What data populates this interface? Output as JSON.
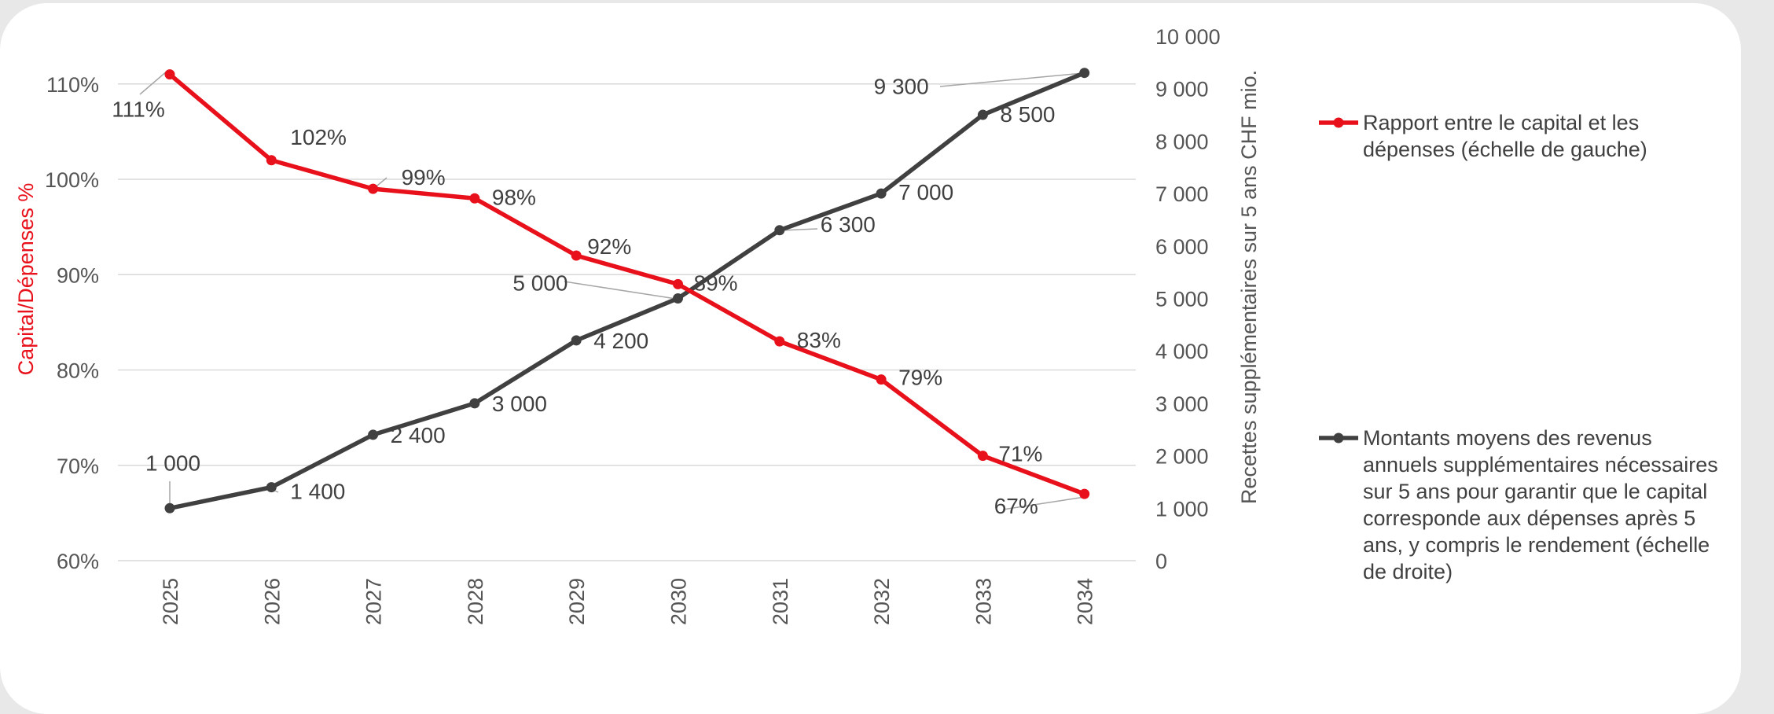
{
  "chart_data": {
    "type": "line",
    "categories": [
      "2025",
      "2026",
      "2027",
      "2028",
      "2029",
      "2030",
      "2031",
      "2032",
      "2033",
      "2034"
    ],
    "series": [
      {
        "name": "Rapport entre le capital et les dépenses (échelle de gauche)",
        "axis": "left",
        "color": "#e8101a",
        "values": [
          111,
          102,
          99,
          98,
          92,
          89,
          83,
          79,
          71,
          67
        ],
        "labels": [
          "111%",
          "102%",
          "99%",
          "98%",
          "92%",
          "89%",
          "83%",
          "79%",
          "71%",
          "67%"
        ]
      },
      {
        "name": "Montants moyens des revenus annuels supplémentaires nécessaires sur 5 ans pour garantir que le capital corresponde aux dépenses après 5 ans, y compris le rendement (échelle de droite)",
        "axis": "right",
        "color": "#404040",
        "values": [
          1000,
          1400,
          2400,
          3000,
          4200,
          5000,
          6300,
          7000,
          8500,
          9300
        ],
        "labels": [
          "1 000",
          "1 400",
          "2 400",
          "3 000",
          "4 200",
          "5 000",
          "6 300",
          "7 000",
          "8 500",
          "9 300"
        ]
      }
    ],
    "y_left": {
      "label": "Capital/Dépenses %",
      "label_color": "#e8101a",
      "ylim": [
        60,
        115
      ],
      "ticks": [
        60,
        70,
        80,
        90,
        100,
        110
      ],
      "tick_labels": [
        "60%",
        "70%",
        "80%",
        "90%",
        "100%",
        "110%"
      ]
    },
    "y_right": {
      "label": "Recettes supplémentaires sur 5 ans CHF mio.",
      "ylim": [
        0,
        10000
      ],
      "ticks": [
        0,
        1000,
        2000,
        3000,
        4000,
        5000,
        6000,
        7000,
        8000,
        9000,
        10000
      ],
      "tick_labels": [
        "0",
        "1 000",
        "2 000",
        "3 000",
        "4 000",
        "5 000",
        "6 000",
        "7 000",
        "8 000",
        "9 000",
        "10 000"
      ]
    },
    "grid": true,
    "legend_position": "right"
  }
}
